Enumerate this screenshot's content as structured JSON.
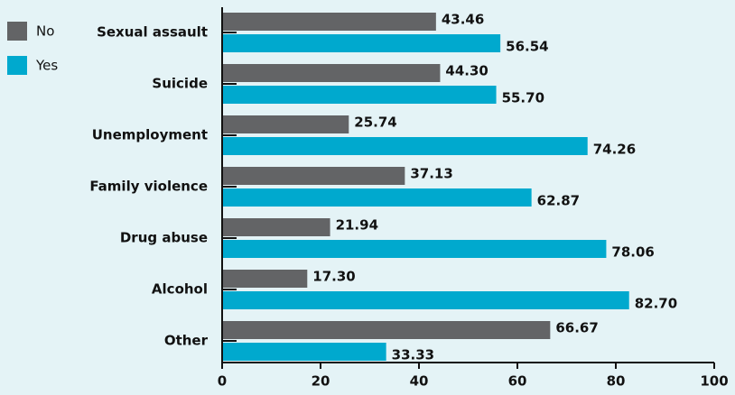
{
  "chart_data": {
    "type": "bar",
    "orientation": "horizontal",
    "categories": [
      "Sexual assault",
      "Suicide",
      "Unemployment",
      "Family violence",
      "Drug abuse",
      "Alcohol",
      "Other"
    ],
    "series": [
      {
        "name": "No",
        "color": "#636466",
        "values": [
          43.46,
          44.3,
          25.74,
          37.13,
          21.94,
          17.3,
          66.67
        ],
        "value_labels": [
          "43.46",
          "44.30",
          "25.74",
          "37.13",
          "21.94",
          "17.30",
          "66.67"
        ]
      },
      {
        "name": "Yes",
        "color": "#00a9ce",
        "values": [
          56.54,
          55.7,
          74.26,
          62.87,
          78.06,
          82.7,
          33.33
        ],
        "value_labels": [
          "56.54",
          "55.70",
          "74.26",
          "62.87",
          "78.06",
          "82.70",
          "33.33"
        ]
      }
    ],
    "xlim": [
      0,
      100
    ],
    "xticks": [
      0,
      20,
      40,
      60,
      80,
      100
    ],
    "legend": "top-left"
  }
}
